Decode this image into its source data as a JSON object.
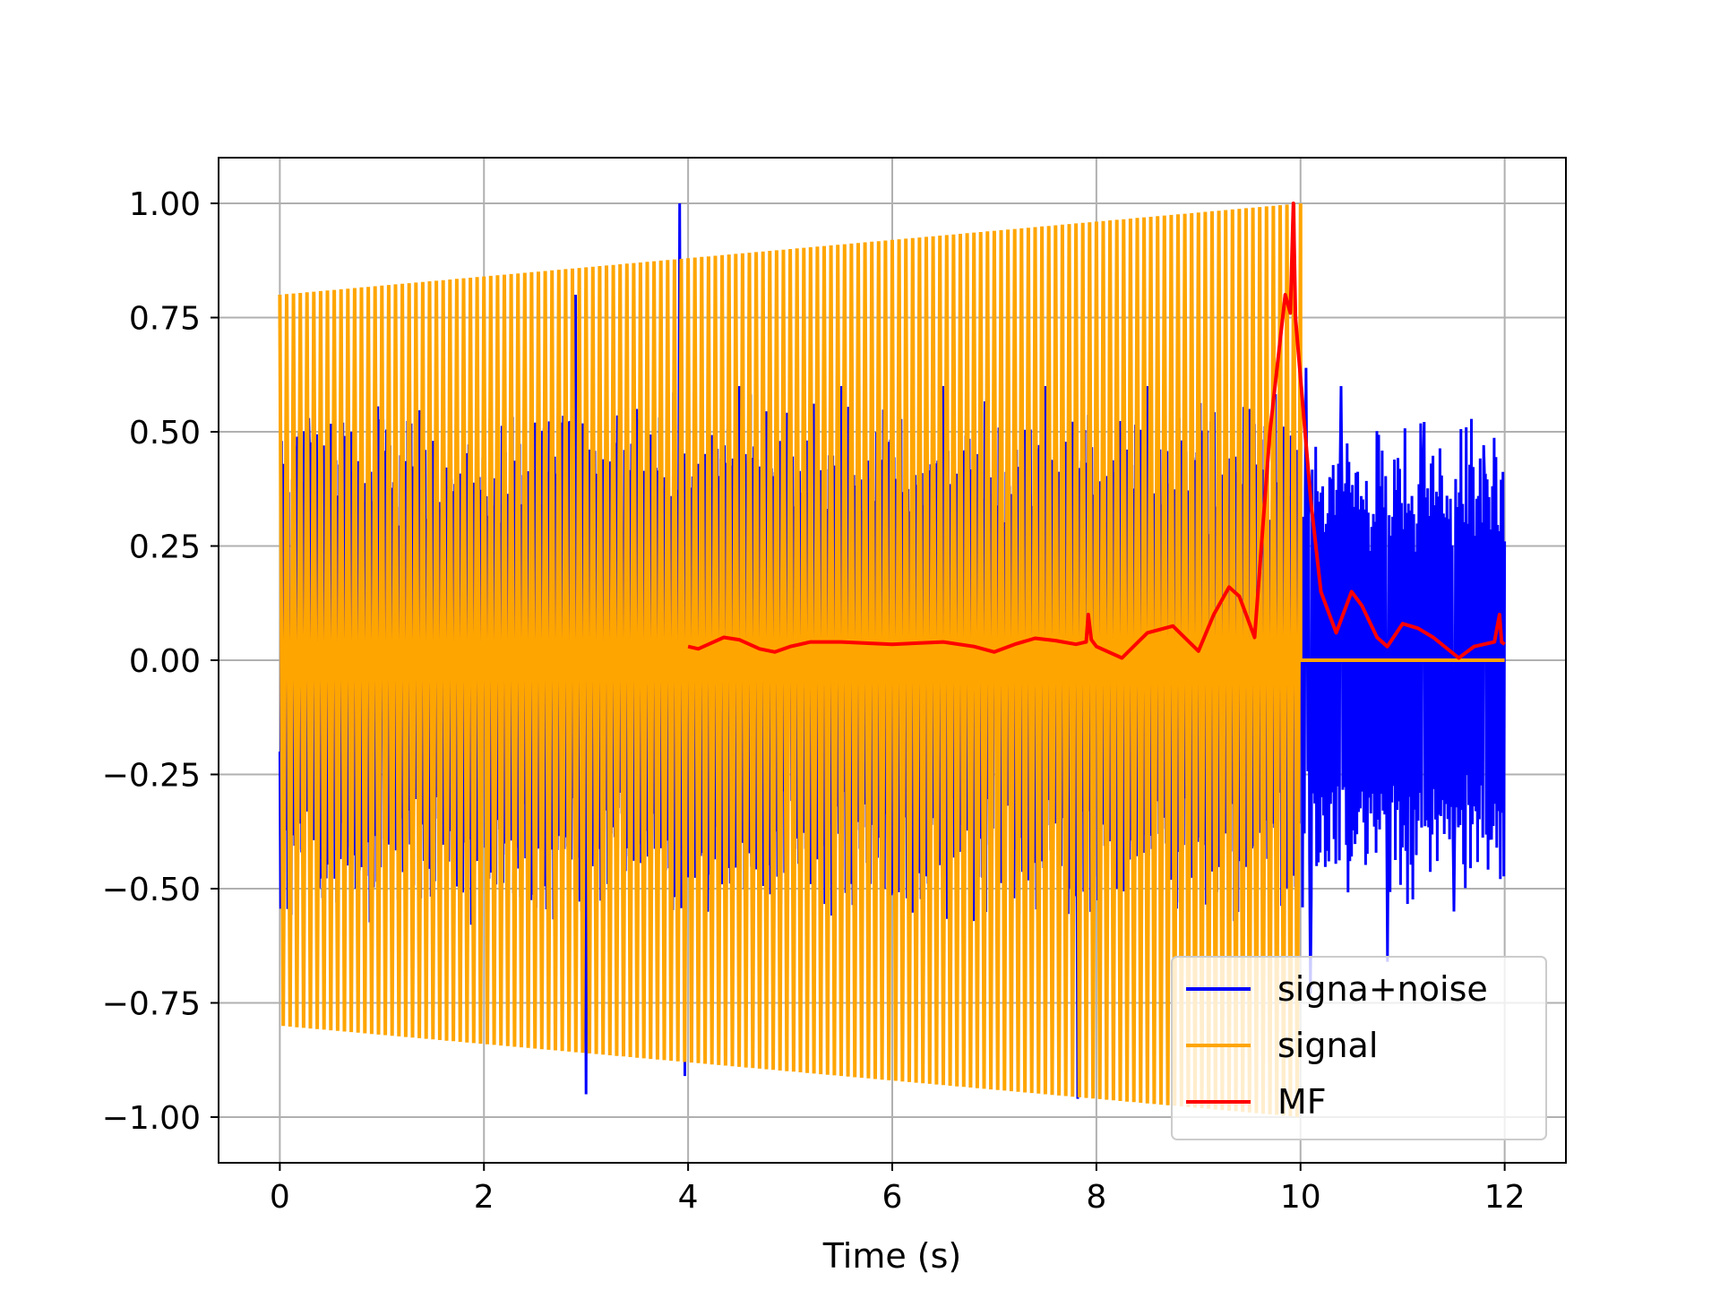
{
  "chart_data": {
    "type": "line",
    "title": "",
    "xlabel": "Time (s)",
    "ylabel": "",
    "xlim": [
      -0.6,
      12.6
    ],
    "ylim": [
      -1.1,
      1.1
    ],
    "xticks": [
      0,
      2,
      4,
      6,
      8,
      10,
      12
    ],
    "xtick_labels": [
      "0",
      "2",
      "4",
      "6",
      "8",
      "10",
      "12"
    ],
    "yticks": [
      1.0,
      0.75,
      0.5,
      0.25,
      0.0,
      -0.25,
      -0.5,
      -0.75,
      -1.0
    ],
    "ytick_labels": [
      "1.00",
      "0.75",
      "0.50",
      "0.25",
      "0.00",
      "−0.25",
      "−0.50",
      "−0.75",
      "−1.00"
    ],
    "grid": true,
    "legend_position": "lower-right",
    "series": [
      {
        "name": "signa+noise",
        "color": "#0000ff",
        "description_points": {
          "x": [
            0,
            0.03,
            0.1,
            0.28,
            0.62,
            1.0,
            1.5,
            2.0,
            2.5,
            2.9,
            3.0,
            3.5,
            3.92,
            3.97,
            4.5,
            5.0,
            5.5,
            6.0,
            6.5,
            7.0,
            7.5,
            7.82,
            8.0,
            8.5,
            9.0,
            9.5,
            10.0,
            10.05,
            10.1,
            10.4,
            10.85,
            11.2,
            11.5,
            11.8,
            12.0
          ],
          "y": [
            -0.2,
            0.43,
            -0.27,
            0.53,
            0.52,
            0.5,
            0.48,
            0.5,
            0.52,
            0.8,
            -0.95,
            0.55,
            1.0,
            -0.91,
            0.6,
            0.62,
            0.6,
            0.62,
            0.6,
            0.6,
            0.6,
            -0.96,
            0.6,
            0.6,
            0.55,
            0.55,
            0.05,
            0.64,
            -0.73,
            0.6,
            -0.66,
            0.45,
            -0.55,
            0.4,
            0.26
          ]
        }
      },
      {
        "name": "signal",
        "color": "#ffa500",
        "envelope": {
          "x_start": 0.0,
          "x_end": 10.0,
          "amplitude_start": 0.8,
          "amplitude_end": 1.0,
          "cycles": 150,
          "after_end_value": 0.0,
          "x_max": 12.0
        }
      },
      {
        "name": "MF",
        "color": "#ff0000",
        "x": [
          4.0,
          4.1,
          4.2,
          4.35,
          4.5,
          4.7,
          4.85,
          5.0,
          5.2,
          5.5,
          6.0,
          6.5,
          6.8,
          7.0,
          7.2,
          7.4,
          7.6,
          7.8,
          7.9,
          7.92,
          7.95,
          8.0,
          8.25,
          8.5,
          8.75,
          9.0,
          9.15,
          9.3,
          9.4,
          9.55,
          9.7,
          9.85,
          9.9,
          9.93,
          9.95,
          10.1,
          10.2,
          10.35,
          10.5,
          10.6,
          10.75,
          10.85,
          11.0,
          11.15,
          11.3,
          11.55,
          11.7,
          11.9,
          11.95,
          11.97,
          12.0
        ],
        "y": [
          0.03,
          0.025,
          0.035,
          0.05,
          0.045,
          0.025,
          0.018,
          0.03,
          0.04,
          0.04,
          0.035,
          0.04,
          0.03,
          0.018,
          0.035,
          0.048,
          0.043,
          0.035,
          0.04,
          0.1,
          0.045,
          0.03,
          0.005,
          0.06,
          0.075,
          0.02,
          0.1,
          0.16,
          0.14,
          0.05,
          0.5,
          0.8,
          0.76,
          1.0,
          0.75,
          0.35,
          0.15,
          0.06,
          0.15,
          0.12,
          0.05,
          0.03,
          0.08,
          0.07,
          0.05,
          0.005,
          0.03,
          0.04,
          0.1,
          0.04,
          0.035
        ]
      }
    ]
  }
}
